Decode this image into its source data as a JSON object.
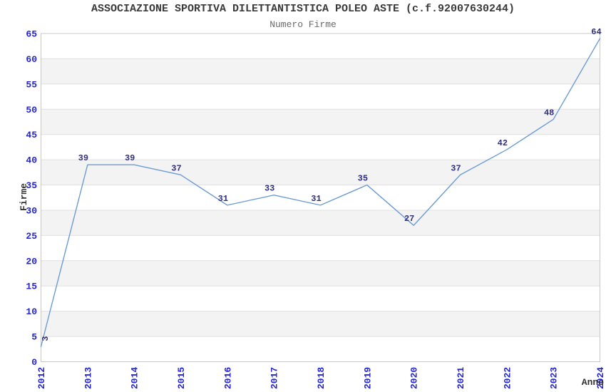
{
  "chart_data": {
    "type": "line",
    "title": "ASSOCIAZIONE SPORTIVA DILETTANTISTICA POLEO ASTE (c.f.92007630244)",
    "subtitle": "Numero Firme",
    "xlabel": "Anno",
    "ylabel": "Firme",
    "categories": [
      "2012",
      "2013",
      "2014",
      "2015",
      "2016",
      "2017",
      "2018",
      "2019",
      "2020",
      "2021",
      "2022",
      "2023",
      "2024"
    ],
    "values": [
      3,
      39,
      39,
      37,
      31,
      33,
      31,
      35,
      27,
      37,
      42,
      48,
      64
    ],
    "ylim": [
      0,
      65
    ],
    "ytick_step": 5,
    "grid": true,
    "legend": "none",
    "alternating_bands": true,
    "point_labels": true,
    "x_tick_rotation": -90,
    "colors": {
      "line": "#6C9BD6",
      "point_label": "#31317D",
      "tick_label": "#2525CC",
      "band": "#F3F3F3",
      "grid": "#E0E0E0",
      "border": "#C8C8C8",
      "axis_title": "#333333",
      "title": "#3A3A3A",
      "subtitle": "#6A6A6A",
      "background": "#FFFFFF"
    }
  }
}
